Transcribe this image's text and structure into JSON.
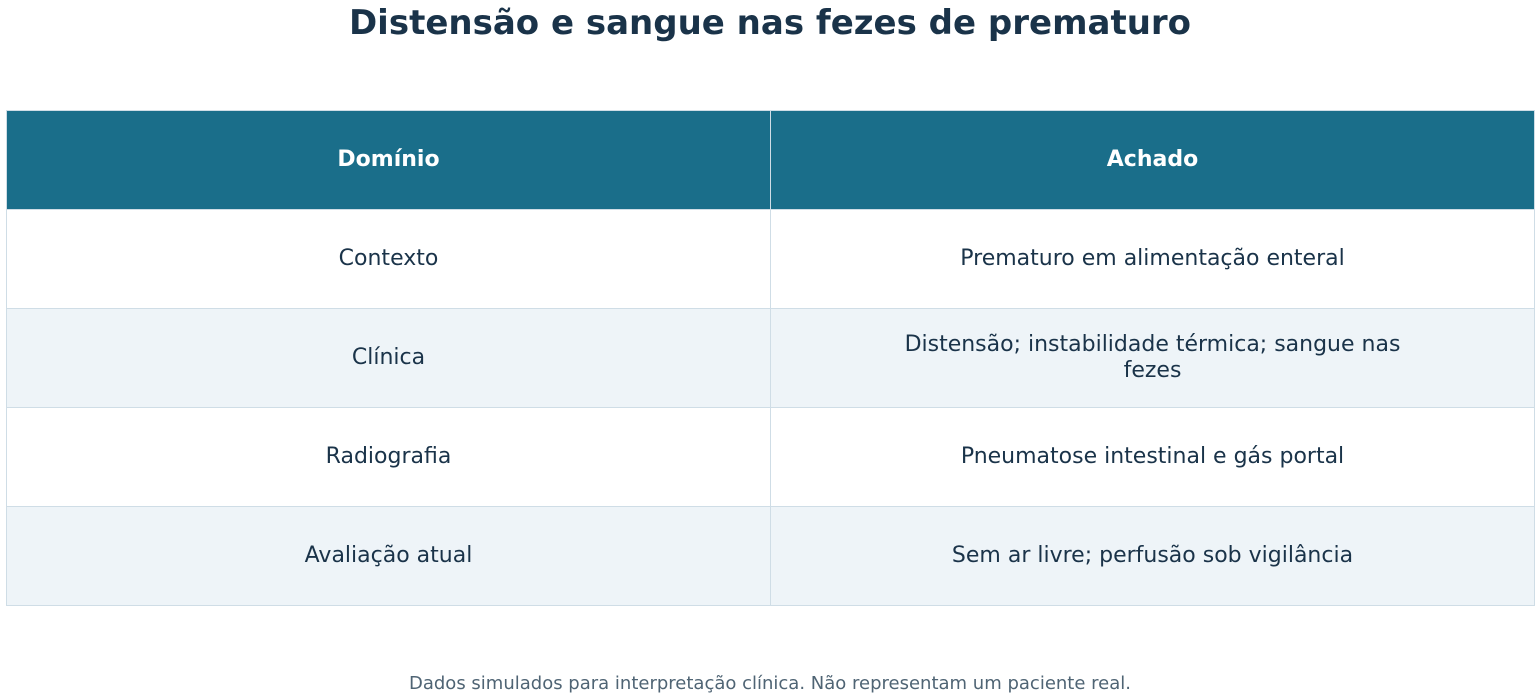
{
  "header": {
    "title": "Distensão e sangue nas fezes de prematuro"
  },
  "table": {
    "columns": [
      "Domínio",
      "Achado"
    ],
    "rows": [
      [
        "Contexto",
        "Prematuro em alimentação enteral"
      ],
      [
        "Clínica",
        "Distensão; instabilidade térmica; sangue nas fezes"
      ],
      [
        "Radiografia",
        "Pneumatose intestinal e gás portal"
      ],
      [
        "Avaliação atual",
        "Sem ar livre; perfusão sob vigilância"
      ]
    ]
  },
  "footer": {
    "note": "Dados simulados para interpretação clínica. Não representam um paciente real."
  }
}
